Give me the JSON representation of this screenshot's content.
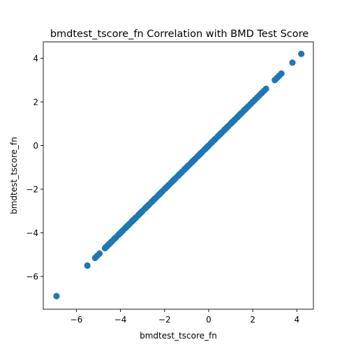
{
  "chart_data": {
    "type": "scatter",
    "title": "bmdtest_tscore_fn Correlation with BMD Test Score",
    "xlabel": "bmdtest_tscore_fn",
    "ylabel": "bmdtest_tscore_fn",
    "xlim": [
      -7.5,
      4.75
    ],
    "ylim": [
      -7.5,
      4.75
    ],
    "xticks": [
      -6,
      -4,
      -2,
      0,
      2,
      4
    ],
    "yticks": [
      -6,
      -4,
      -2,
      0,
      2,
      4
    ],
    "xtick_labels": [
      "−6",
      "−4",
      "−2",
      "0",
      "2",
      "4"
    ],
    "ytick_labels": [
      "−6",
      "−4",
      "−2",
      "0",
      "2",
      "4"
    ],
    "grid": false,
    "marker_color": "#1f77b4",
    "series": [
      {
        "x": [
          -6.9,
          -5.5,
          -5.15,
          -5.05,
          -4.95,
          -4.7,
          -4.65,
          -4.6,
          -4.55,
          -4.5,
          -4.45,
          -4.4,
          -4.3,
          -4.25,
          -4.2,
          -4.1,
          -4.05,
          -4.0,
          -3.95,
          -3.9,
          -3.8,
          -3.75,
          -3.7,
          -3.65,
          -3.6,
          -3.5,
          -3.45,
          -3.4,
          -3.35,
          -3.3,
          -3.2,
          -3.15,
          -3.1,
          -3.05,
          -3.0,
          -2.9,
          -2.85,
          -2.8,
          -2.75,
          -2.7,
          -2.6,
          -2.55,
          -2.5,
          -2.45,
          -2.4,
          -2.3,
          -2.25,
          -2.2,
          -2.15,
          -2.1,
          -2.0,
          -1.95,
          -1.9,
          -1.85,
          -1.8,
          -1.7,
          -1.65,
          -1.6,
          -1.55,
          -1.5,
          -1.4,
          -1.35,
          -1.3,
          -1.25,
          -1.2,
          -1.1,
          -1.05,
          -1.0,
          -0.95,
          -0.9,
          -0.8,
          -0.75,
          -0.7,
          -0.65,
          -0.6,
          -0.5,
          -0.45,
          -0.4,
          -0.35,
          -0.3,
          -0.2,
          -0.15,
          -0.1,
          -0.05,
          0.0,
          0.1,
          0.15,
          0.2,
          0.25,
          0.3,
          0.4,
          0.45,
          0.5,
          0.55,
          0.6,
          0.7,
          0.75,
          0.8,
          0.85,
          0.9,
          1.0,
          1.05,
          1.1,
          1.15,
          1.2,
          1.3,
          1.35,
          1.4,
          1.45,
          1.5,
          1.6,
          1.65,
          1.7,
          1.8,
          1.9,
          2.0,
          2.1,
          2.2,
          2.3,
          2.4,
          2.5,
          2.6,
          3.0,
          3.1,
          3.2,
          3.3,
          3.8,
          4.2
        ],
        "y": [
          -6.9,
          -5.5,
          -5.15,
          -5.05,
          -4.95,
          -4.7,
          -4.65,
          -4.6,
          -4.55,
          -4.5,
          -4.45,
          -4.4,
          -4.3,
          -4.25,
          -4.2,
          -4.1,
          -4.05,
          -4.0,
          -3.95,
          -3.9,
          -3.8,
          -3.75,
          -3.7,
          -3.65,
          -3.6,
          -3.5,
          -3.45,
          -3.4,
          -3.35,
          -3.3,
          -3.2,
          -3.15,
          -3.1,
          -3.05,
          -3.0,
          -2.9,
          -2.85,
          -2.8,
          -2.75,
          -2.7,
          -2.6,
          -2.55,
          -2.5,
          -2.45,
          -2.4,
          -2.3,
          -2.25,
          -2.2,
          -2.15,
          -2.1,
          -2.0,
          -1.95,
          -1.9,
          -1.85,
          -1.8,
          -1.7,
          -1.65,
          -1.6,
          -1.55,
          -1.5,
          -1.4,
          -1.35,
          -1.3,
          -1.25,
          -1.2,
          -1.1,
          -1.05,
          -1.0,
          -0.95,
          -0.9,
          -0.8,
          -0.75,
          -0.7,
          -0.65,
          -0.6,
          -0.5,
          -0.45,
          -0.4,
          -0.35,
          -0.3,
          -0.2,
          -0.15,
          -0.1,
          -0.05,
          0.0,
          0.1,
          0.15,
          0.2,
          0.25,
          0.3,
          0.4,
          0.45,
          0.5,
          0.55,
          0.6,
          0.7,
          0.75,
          0.8,
          0.85,
          0.9,
          1.0,
          1.05,
          1.1,
          1.15,
          1.2,
          1.3,
          1.35,
          1.4,
          1.45,
          1.5,
          1.6,
          1.65,
          1.7,
          1.8,
          1.9,
          2.0,
          2.1,
          2.2,
          2.3,
          2.4,
          2.5,
          2.6,
          3.0,
          3.1,
          3.2,
          3.3,
          3.8,
          4.2
        ]
      }
    ]
  }
}
